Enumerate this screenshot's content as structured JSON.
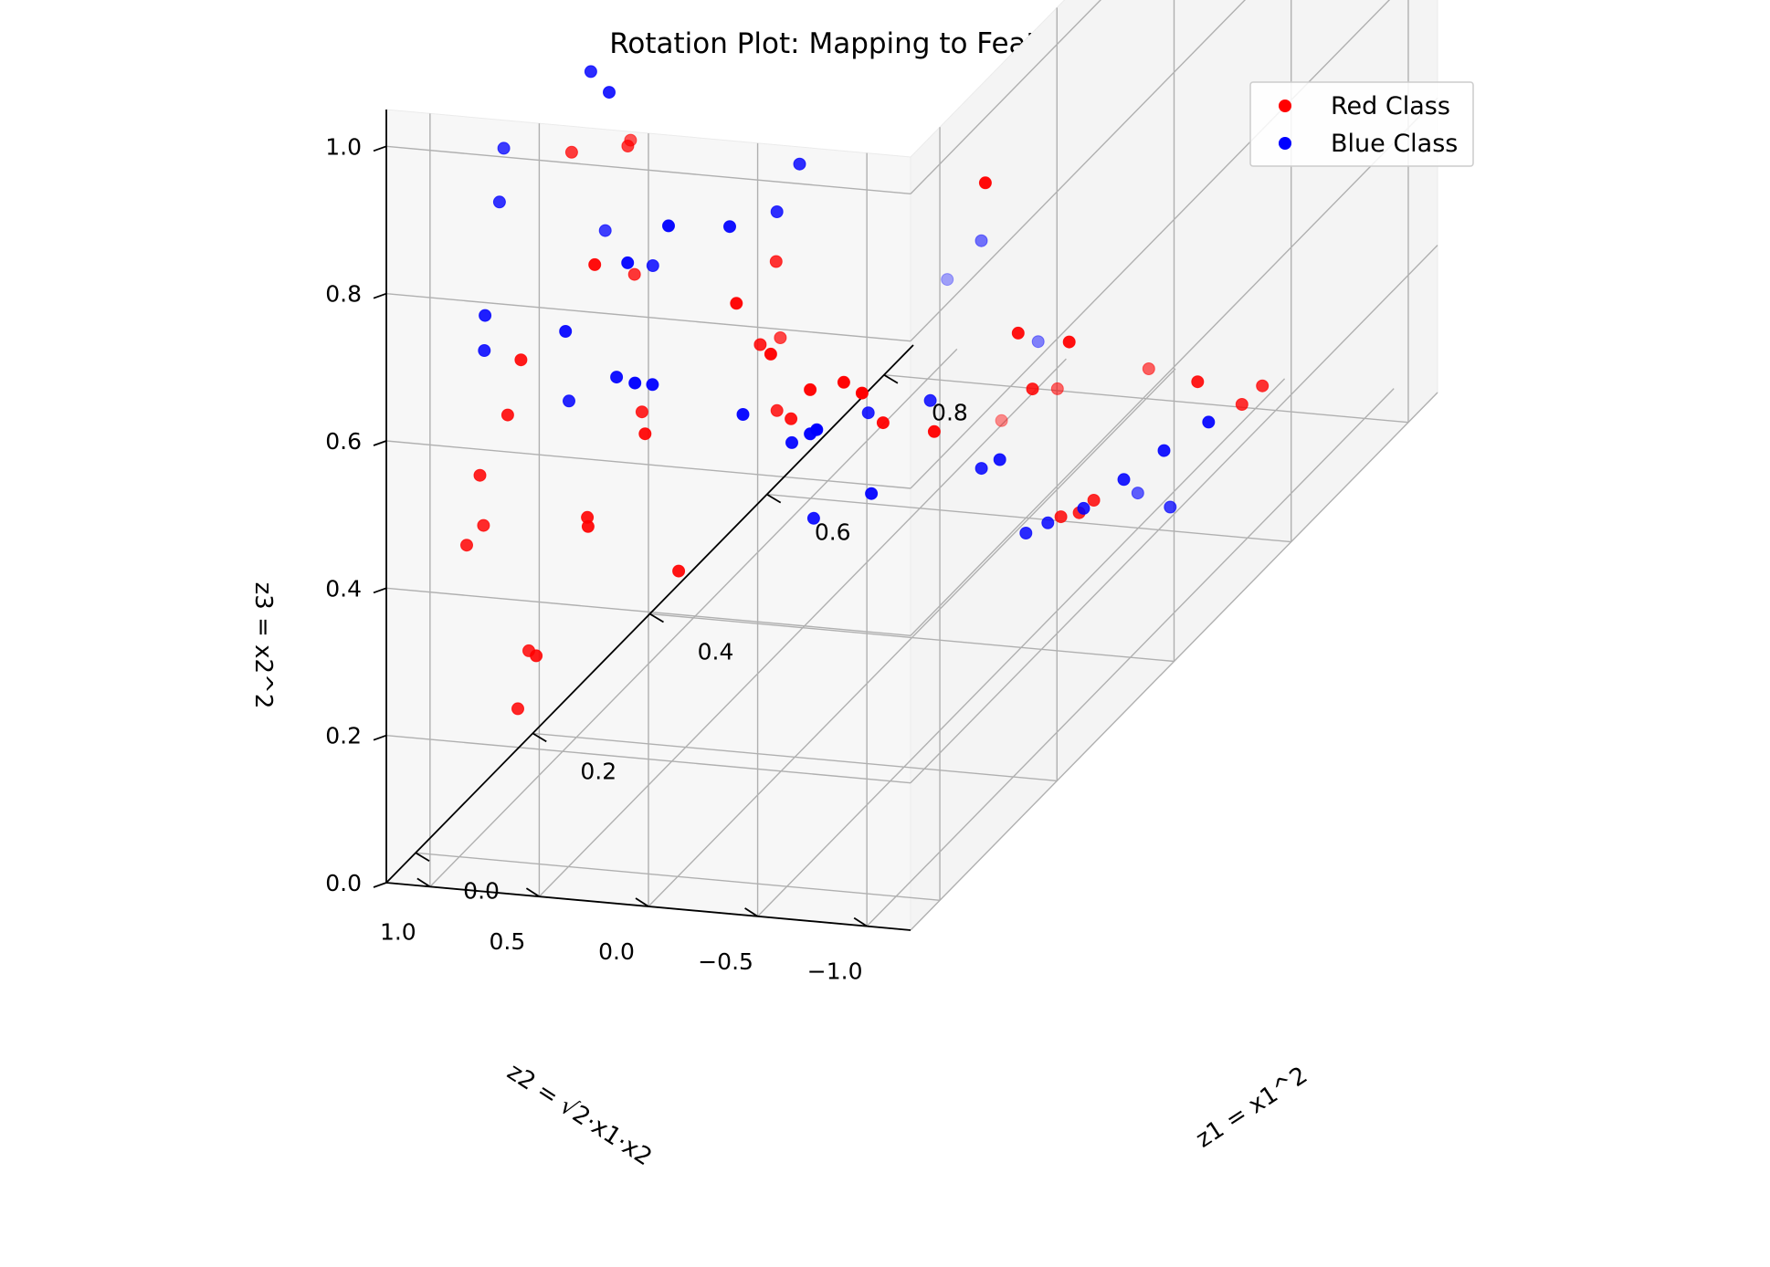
{
  "chart_data": {
    "type": "scatter",
    "title": "Rotation Plot: Mapping to Feature Space",
    "xlabel": "z1 = x1^2",
    "ylabel": "z2 = √2·x1·x2",
    "zlabel": "z3 = x2^2",
    "xlim": [
      -0.05,
      0.85
    ],
    "ylim": [
      -1.2,
      1.2
    ],
    "zlim": [
      0.0,
      1.05
    ],
    "xticks": [
      "0.0",
      "0.2",
      "0.4",
      "0.6",
      "0.8"
    ],
    "yticks": [
      "−1.0",
      "−0.5",
      "0.0",
      "0.5",
      "1.0"
    ],
    "zticks": [
      "0.0",
      "0.2",
      "0.4",
      "0.6",
      "0.8",
      "1.0"
    ],
    "grid": true,
    "legend_position": "top-right",
    "colors": {
      "red": "#ff0000",
      "blue": "#0000ff"
    },
    "series": [
      {
        "name": "Red Class",
        "color": "#ff0000",
        "points": [
          [
            0.58,
            -0.35,
            0.05
          ],
          [
            0.57,
            -0.31,
            0.04
          ],
          [
            0.55,
            -0.28,
            0.05
          ],
          [
            0.7,
            -0.8,
            0.12
          ],
          [
            0.68,
            -0.76,
            0.11
          ],
          [
            0.45,
            -0.95,
            0.35
          ],
          [
            0.18,
            -1.0,
            0.5
          ],
          [
            0.35,
            -0.8,
            0.4
          ],
          [
            0.72,
            -0.45,
            0.1
          ],
          [
            0.55,
            -0.15,
            0.22
          ],
          [
            0.6,
            0.05,
            0.25
          ],
          [
            0.8,
            0.4,
            0.8
          ],
          [
            0.75,
            0.45,
            0.78
          ],
          [
            0.22,
            0.12,
            0.55
          ],
          [
            0.28,
            0.3,
            0.6
          ],
          [
            0.15,
            0.6,
            0.68
          ],
          [
            0.05,
            0.35,
            0.95
          ],
          [
            0.12,
            0.55,
            0.88
          ],
          [
            0.08,
            0.7,
            0.9
          ],
          [
            0.32,
            0.48,
            0.45
          ],
          [
            0.3,
            0.35,
            0.38
          ],
          [
            0.38,
            0.5,
            0.3
          ],
          [
            0.5,
            0.4,
            0.2
          ],
          [
            0.55,
            0.3,
            0.15
          ],
          [
            0.1,
            1.0,
            0.12
          ],
          [
            0.1,
            0.95,
            0.2
          ],
          [
            0.2,
            0.95,
            0.3
          ],
          [
            0.22,
            1.0,
            0.27
          ],
          [
            0.15,
            1.05,
            0.15
          ],
          [
            0.3,
            0.8,
            0.15
          ],
          [
            0.05,
            1.1,
            0.38
          ],
          [
            0.08,
            1.12,
            0.45
          ],
          [
            0.12,
            1.1,
            0.5
          ],
          [
            0.28,
            0.9,
            0.35
          ],
          [
            0.38,
            0.75,
            0.45
          ],
          [
            0.2,
            0.7,
            0.45
          ],
          [
            0.42,
            0.7,
            0.35
          ],
          [
            0.52,
            0.55,
            0.22
          ],
          [
            0.5,
            0.58,
            0.25
          ],
          [
            0.45,
            0.6,
            0.28
          ],
          [
            0.06,
            1.05,
            0.4
          ],
          [
            0.15,
            1.12,
            0.55
          ],
          [
            0.25,
            1.05,
            0.6
          ],
          [
            0.65,
            -0.05,
            0.2
          ],
          [
            0.6,
            0.2,
            0.45
          ]
        ]
      },
      {
        "name": "Blue Class",
        "color": "#0000ff",
        "points": [
          [
            0.05,
            -1.1,
            0.8
          ],
          [
            0.25,
            -0.98,
            0.55
          ],
          [
            0.25,
            -0.72,
            0.68
          ],
          [
            0.45,
            -0.9,
            0.18
          ],
          [
            0.58,
            -0.7,
            0.05
          ],
          [
            0.75,
            -0.42,
            0.02
          ],
          [
            0.7,
            -0.35,
            0.02
          ],
          [
            0.65,
            -0.3,
            0.02
          ],
          [
            0.6,
            -0.25,
            0.02
          ],
          [
            0.55,
            -0.22,
            0.04
          ],
          [
            0.52,
            -0.2,
            0.05
          ],
          [
            0.5,
            -0.05,
            0.15
          ],
          [
            0.55,
            0.0,
            0.12
          ],
          [
            0.45,
            0.05,
            0.28
          ],
          [
            0.4,
            0.2,
            0.3
          ],
          [
            0.3,
            0.35,
            0.65
          ],
          [
            0.32,
            0.3,
            0.7
          ],
          [
            0.1,
            0.6,
            0.78
          ],
          [
            0.2,
            0.65,
            0.65
          ],
          [
            0.4,
            0.55,
            0.25
          ],
          [
            0.45,
            0.6,
            0.22
          ],
          [
            0.48,
            0.65,
            0.2
          ],
          [
            0.38,
            0.72,
            0.3
          ],
          [
            0.15,
            0.9,
            0.5
          ],
          [
            0.25,
            0.95,
            0.45
          ],
          [
            0.3,
            1.0,
            0.4
          ],
          [
            0.3,
            0.92,
            0.4
          ],
          [
            0.2,
            1.05,
            0.55
          ],
          [
            0.1,
            1.15,
            0.65
          ],
          [
            0.08,
            1.1,
            0.62
          ],
          [
            0.05,
            0.95,
            0.85
          ],
          [
            0.02,
            0.85,
            0.95
          ],
          [
            0.15,
            0.8,
            0.95
          ],
          [
            0.2,
            0.85,
            0.88
          ],
          [
            0.4,
            0.45,
            0.15
          ],
          [
            0.48,
            0.4,
            0.12
          ],
          [
            0.35,
            0.7,
            0.58
          ],
          [
            0.32,
            0.9,
            0.6
          ],
          [
            0.28,
            0.98,
            0.58
          ]
        ]
      }
    ]
  }
}
